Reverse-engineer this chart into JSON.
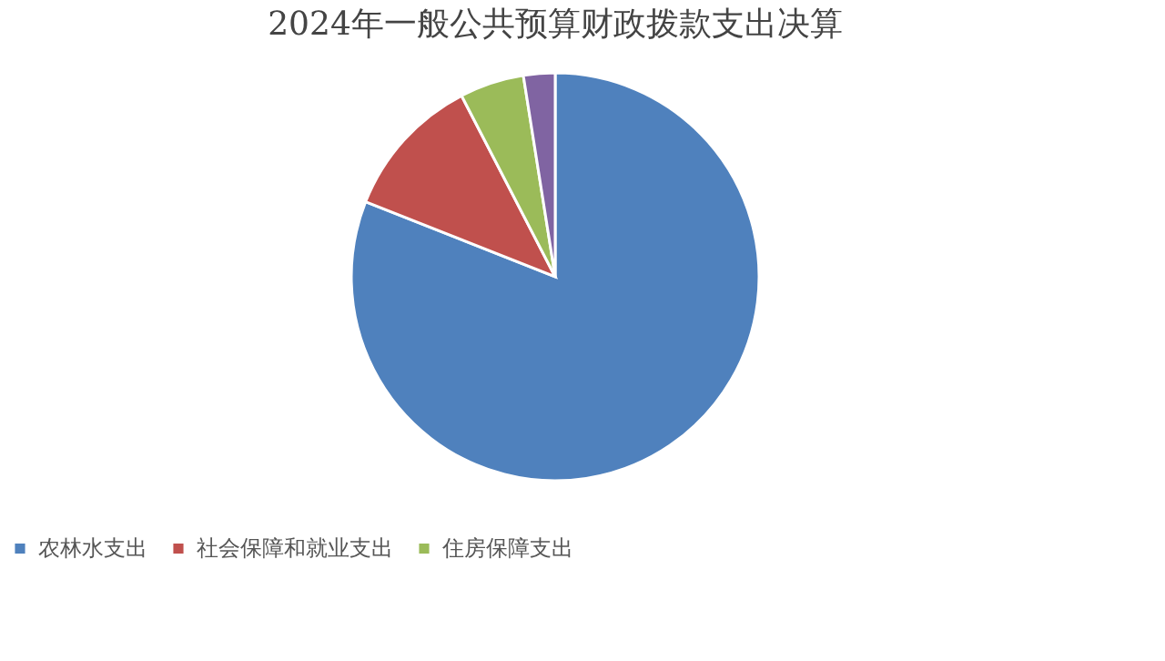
{
  "chart_data": {
    "type": "pie",
    "title": "2024年一般公共预算财政拨款支出决算",
    "categories": [
      "农林水支出",
      "社会保障和就业支出",
      "住房保障支出",
      null
    ],
    "values": [
      81,
      11.4,
      5.1,
      2.5
    ],
    "colors": [
      "#4f81bd",
      "#c0504d",
      "#9bbb59",
      "#8064a2"
    ],
    "legend": "bottom"
  }
}
